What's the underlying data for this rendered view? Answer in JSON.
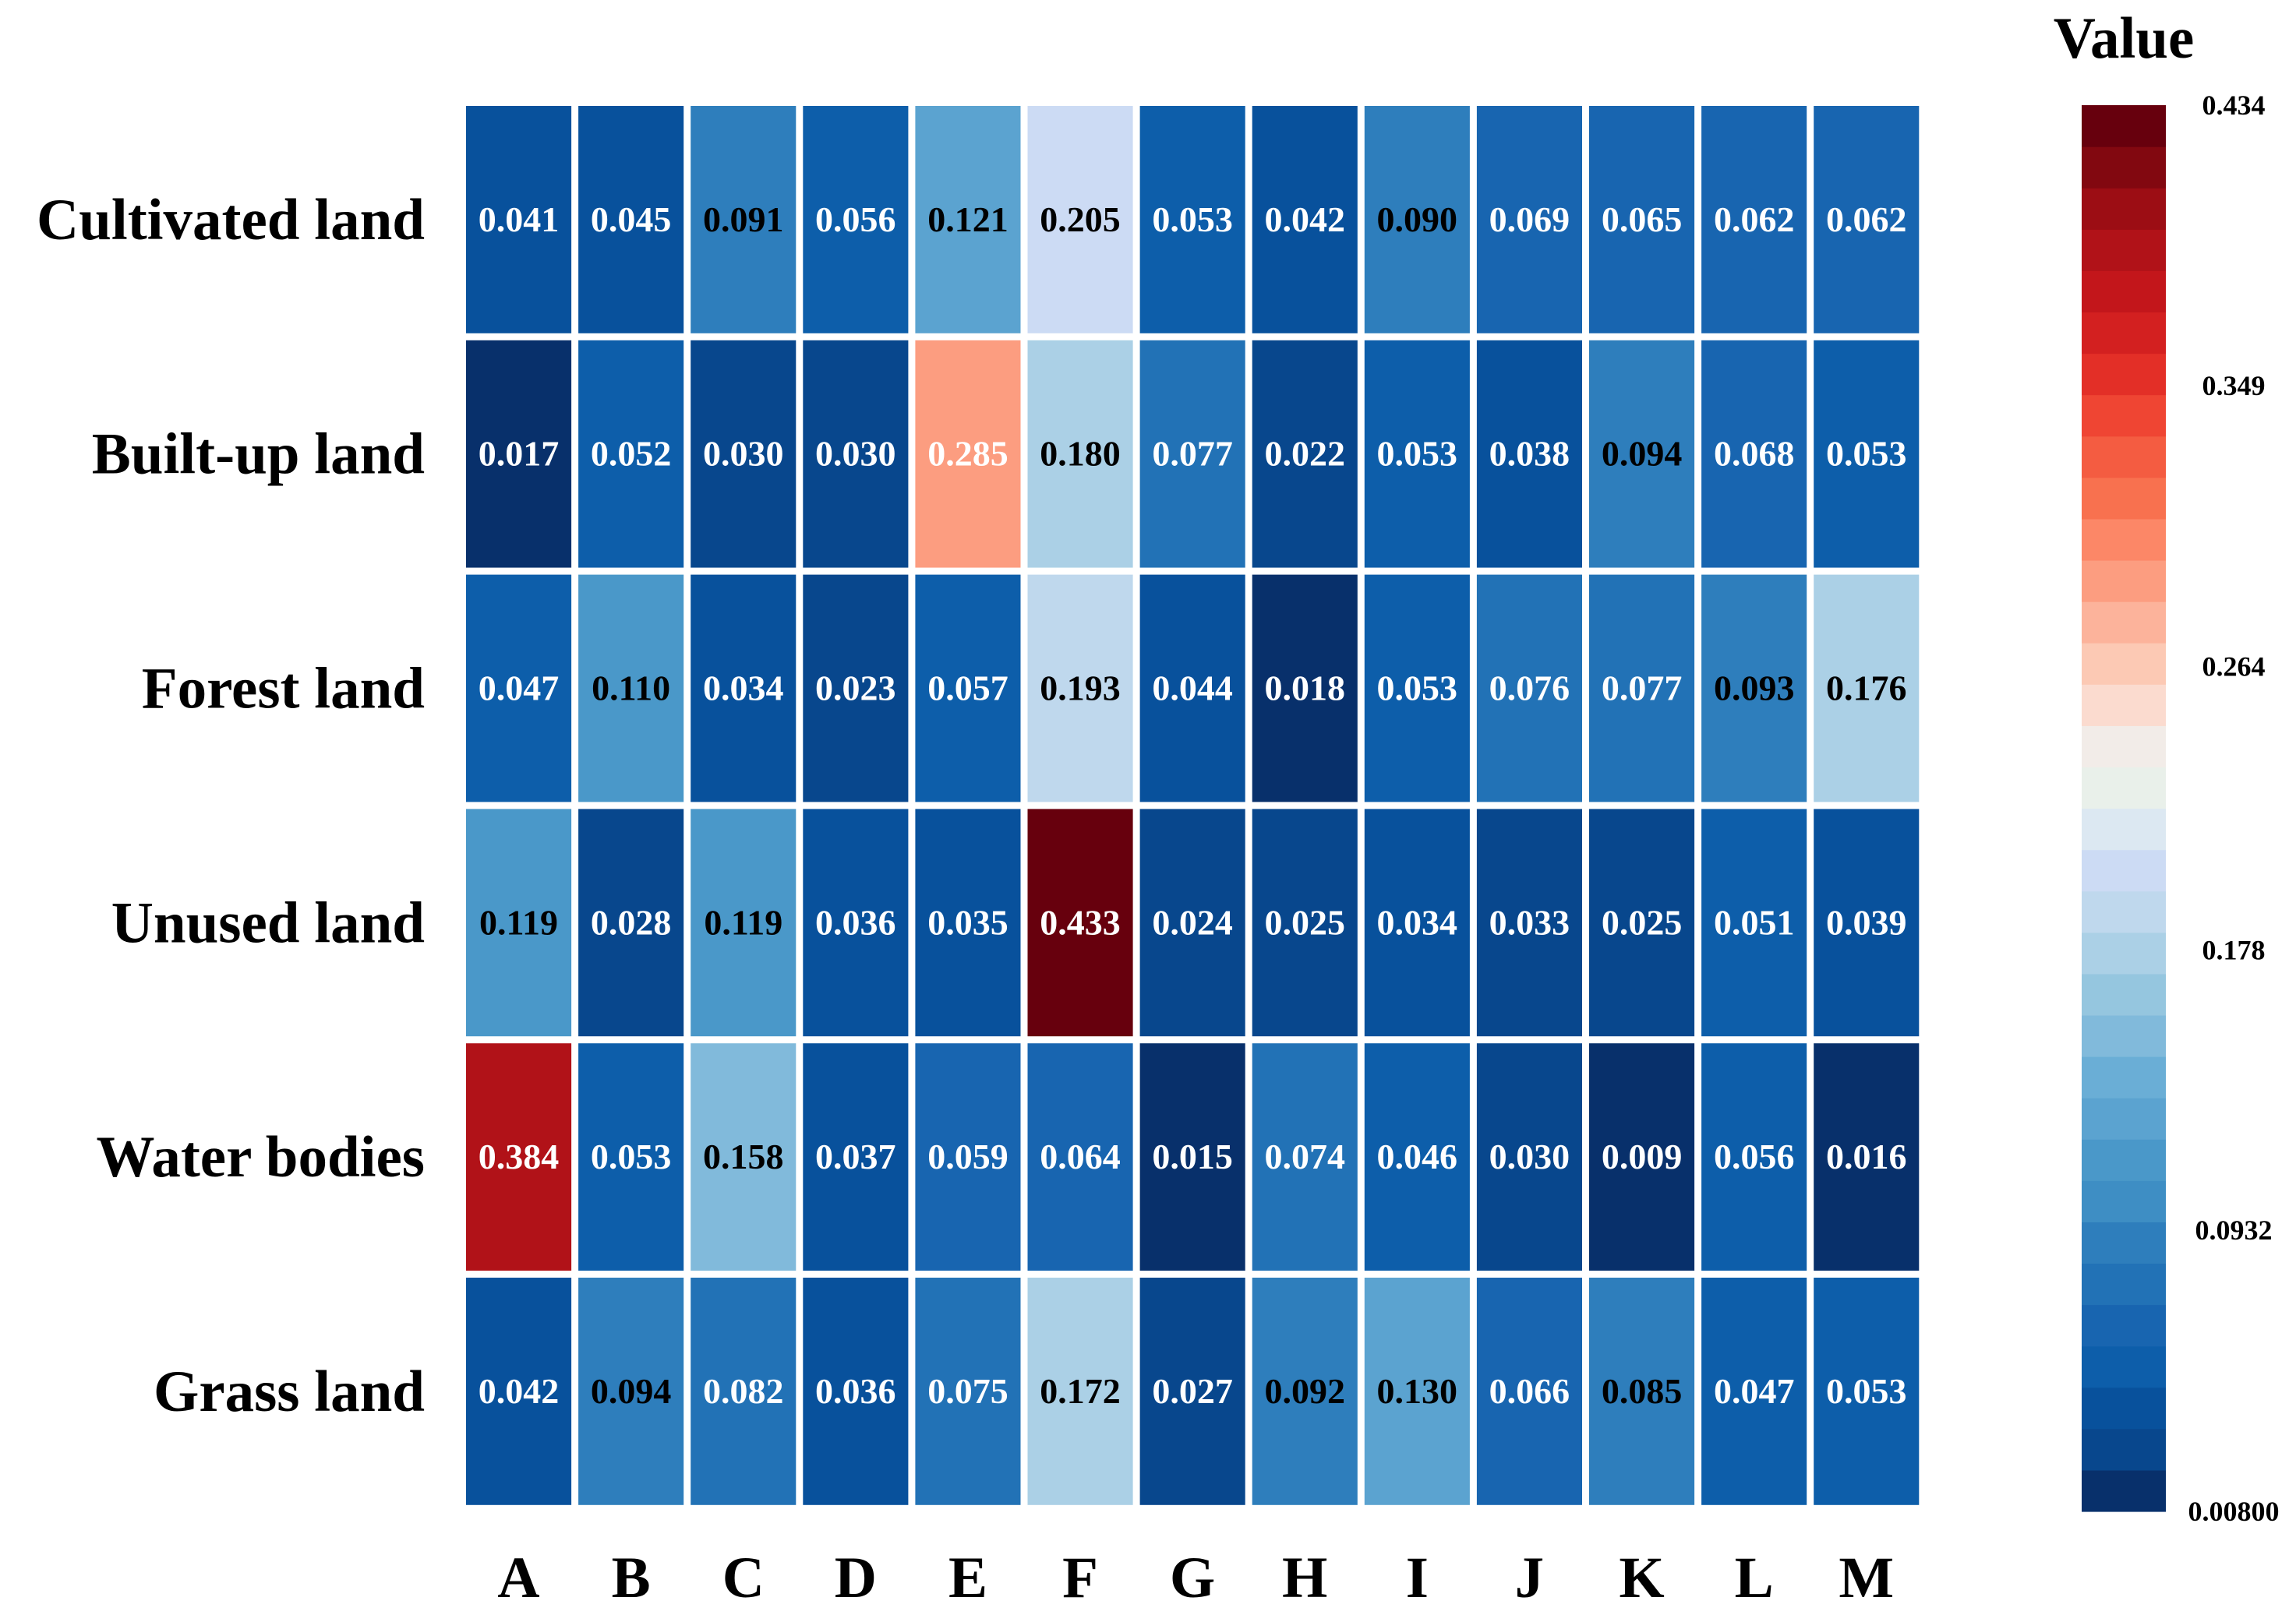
{
  "chart_data": {
    "type": "heatmap",
    "rows": [
      "Cultivated land",
      "Built-up land",
      "Forest land",
      "Unused land",
      "Water bodies",
      "Grass land"
    ],
    "columns": [
      "A",
      "B",
      "C",
      "D",
      "E",
      "F",
      "G",
      "H",
      "I",
      "J",
      "K",
      "L",
      "M"
    ],
    "values": [
      [
        "0.041",
        "0.045",
        "0.091",
        "0.056",
        "0.121",
        "0.205",
        "0.053",
        "0.042",
        "0.090",
        "0.069",
        "0.065",
        "0.062",
        "0.062"
      ],
      [
        "0.017",
        "0.052",
        "0.030",
        "0.030",
        "0.285",
        "0.180",
        "0.077",
        "0.022",
        "0.053",
        "0.038",
        "0.094",
        "0.068",
        "0.053"
      ],
      [
        "0.047",
        "0.110",
        "0.034",
        "0.023",
        "0.057",
        "0.193",
        "0.044",
        "0.018",
        "0.053",
        "0.076",
        "0.077",
        "0.093",
        "0.176"
      ],
      [
        "0.119",
        "0.028",
        "0.119",
        "0.036",
        "0.035",
        "0.433",
        "0.024",
        "0.025",
        "0.034",
        "0.033",
        "0.025",
        "0.051",
        "0.039"
      ],
      [
        "0.384",
        "0.053",
        "0.158",
        "0.037",
        "0.059",
        "0.064",
        "0.015",
        "0.074",
        "0.046",
        "0.030",
        "0.009",
        "0.056",
        "0.016"
      ],
      [
        "0.042",
        "0.094",
        "0.082",
        "0.036",
        "0.075",
        "0.172",
        "0.027",
        "0.092",
        "0.130",
        "0.066",
        "0.085",
        "0.047",
        "0.053"
      ]
    ],
    "colorbar": {
      "title": "Value",
      "min": 0.008,
      "max": 0.434,
      "ticks": [
        {
          "value": 0.434,
          "label": "0.434"
        },
        {
          "value": 0.349,
          "label": "0.349"
        },
        {
          "value": 0.264,
          "label": "0.264"
        },
        {
          "value": 0.178,
          "label": "0.178"
        },
        {
          "value": 0.0932,
          "label": "0.0932"
        },
        {
          "value": 0.008,
          "label": "0.00800"
        }
      ]
    },
    "colors": [
      "#08306b",
      "#08478d",
      "#08519c",
      "#0d5eaa",
      "#1865b0",
      "#2272b6",
      "#2e7ebc",
      "#3e8ec4",
      "#4a98c9",
      "#5ba3d0",
      "#6aaed6",
      "#81badb",
      "#95c6df",
      "#abd0e6",
      "#bfd8ed",
      "#ccdbf4",
      "#dce8f2",
      "#e9f0ea",
      "#f2ece8",
      "#fbdbcf",
      "#fcc9b4",
      "#fcb39b",
      "#fc9d80",
      "#fc8767",
      "#f8714f",
      "#f45c41",
      "#ef4533",
      "#e32f27",
      "#d32020",
      "#c3161b",
      "#b11218",
      "#9c0d14",
      "#820810",
      "#67000d"
    ]
  }
}
